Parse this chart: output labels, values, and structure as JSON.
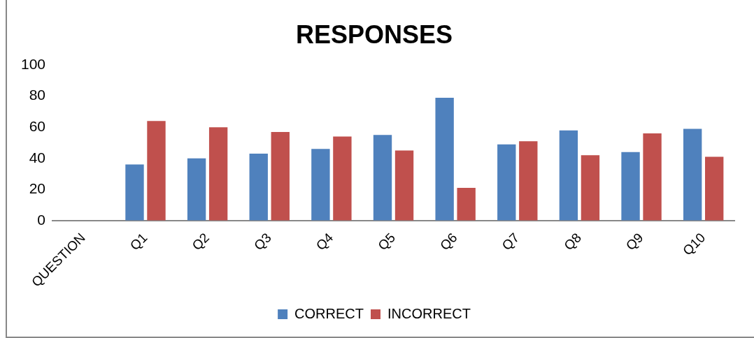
{
  "chart_data": {
    "type": "bar",
    "title": "RESPONSES",
    "categories": [
      "QUESTION",
      "Q1",
      "Q2",
      "Q3",
      "Q4",
      "Q5",
      "Q6",
      "Q7",
      "Q8",
      "Q9",
      "Q10"
    ],
    "series": [
      {
        "name": "CORRECT",
        "color": "#4f81bd",
        "values": [
          null,
          36,
          40,
          43,
          46,
          55,
          79,
          49,
          58,
          44,
          59
        ]
      },
      {
        "name": "INCORRECT",
        "color": "#c0504d",
        "values": [
          null,
          64,
          60,
          57,
          54,
          45,
          21,
          51,
          42,
          56,
          41
        ]
      }
    ],
    "ylim": [
      0,
      100
    ],
    "yticks": [
      0,
      20,
      40,
      60,
      80,
      100
    ],
    "grid": false,
    "legend": "bottom"
  }
}
